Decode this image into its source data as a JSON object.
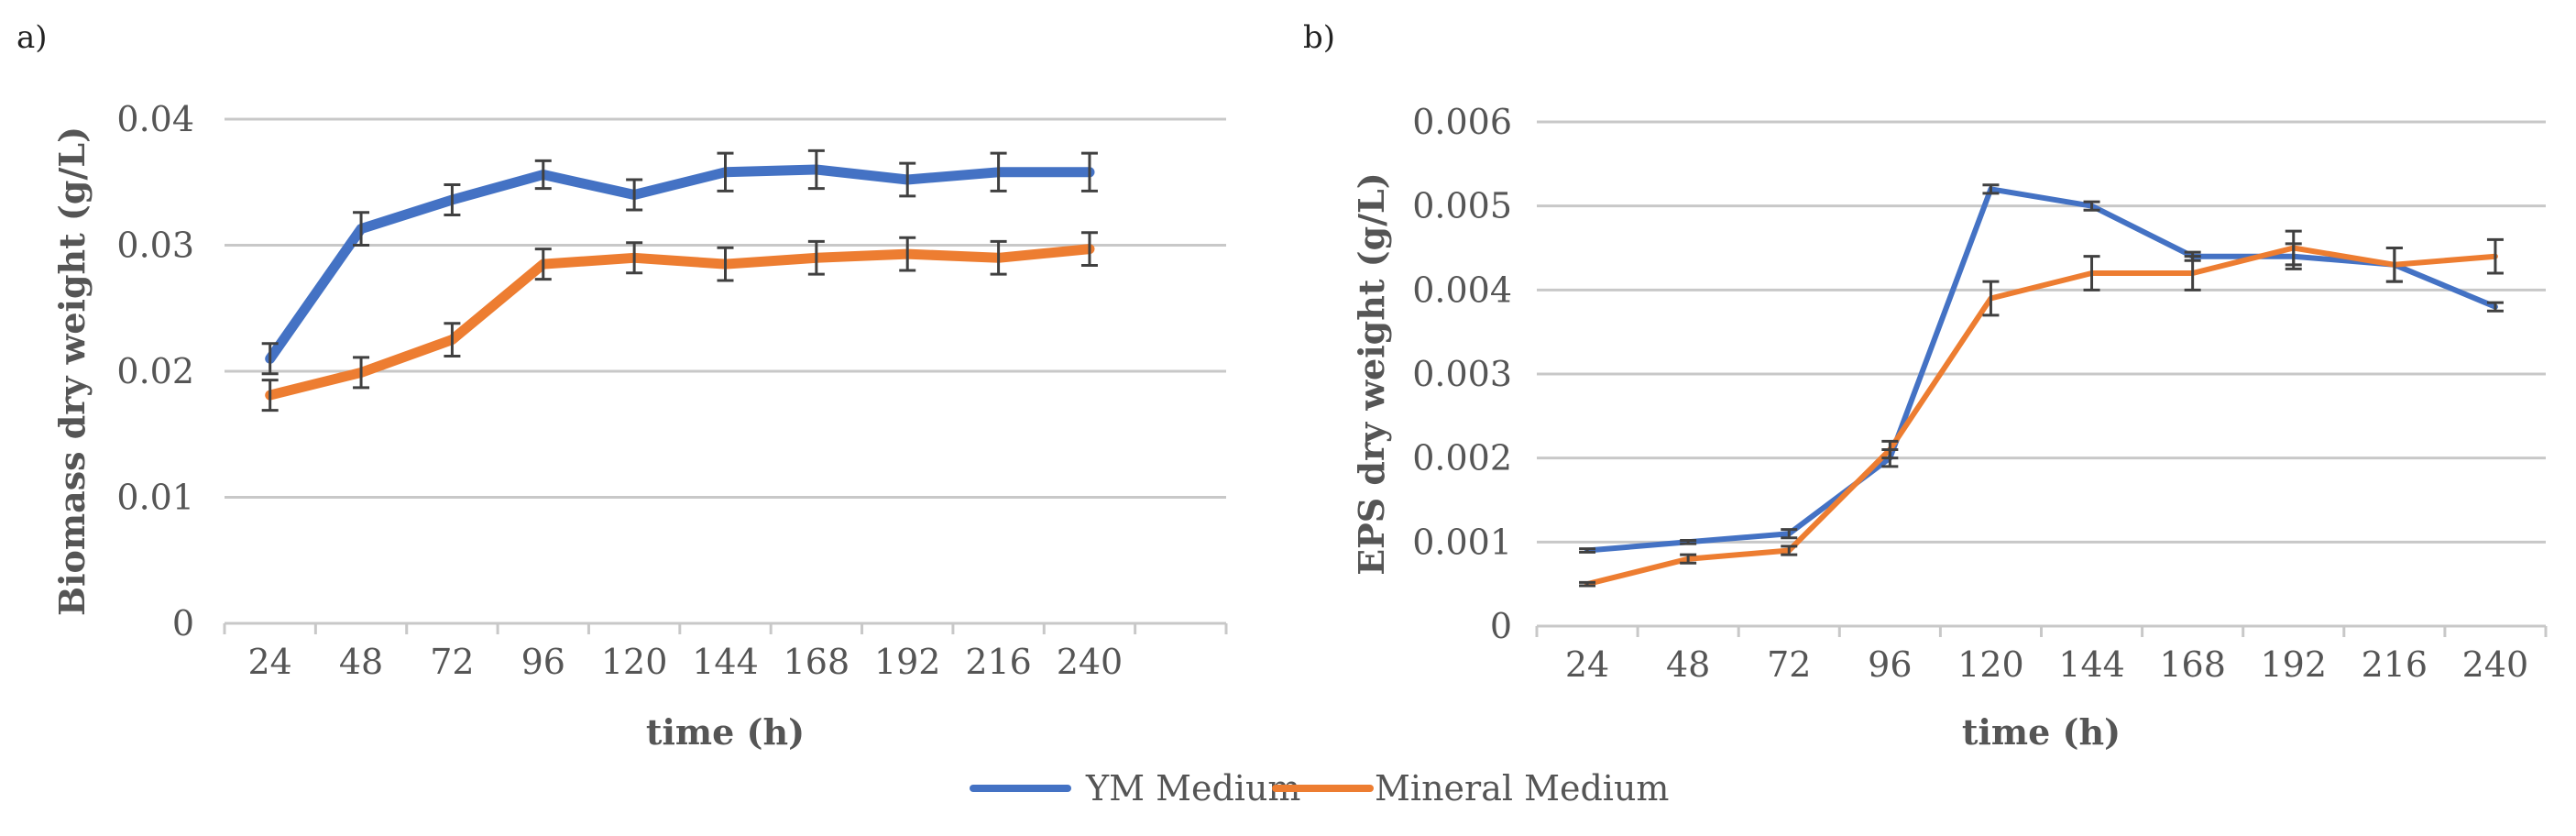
{
  "legend": [
    {
      "name": "YM Medium",
      "color": "#4472c4"
    },
    {
      "name": "Mineral Medium",
      "color": "#ed7d31"
    }
  ],
  "chart_data": [
    {
      "panel_label": "a)",
      "type": "line",
      "title": "",
      "xlabel": "time (h)",
      "ylabel": "Biomass dry weight (g/L)",
      "categories": [
        "24",
        "48",
        "72",
        "96",
        "120",
        "144",
        "168",
        "192",
        "216",
        "240"
      ],
      "extra_empty_category": true,
      "ylim": [
        0,
        0.04
      ],
      "yticks": [
        "0",
        "0.01",
        "0.02",
        "0.03",
        "0.04"
      ],
      "grid": true,
      "series": [
        {
          "name": "YM Medium",
          "color": "#4472c4",
          "values": [
            0.021,
            0.0313,
            0.0336,
            0.0356,
            0.034,
            0.0358,
            0.036,
            0.0352,
            0.0358,
            0.0358
          ],
          "errors": [
            0.0012,
            0.0013,
            0.0012,
            0.0011,
            0.0012,
            0.0015,
            0.0015,
            0.0013,
            0.0015,
            0.0015
          ]
        },
        {
          "name": "Mineral Medium",
          "color": "#ed7d31",
          "values": [
            0.0181,
            0.0199,
            0.0225,
            0.0285,
            0.029,
            0.0285,
            0.029,
            0.0293,
            0.029,
            0.0297
          ],
          "errors": [
            0.0012,
            0.0012,
            0.0013,
            0.0012,
            0.0012,
            0.0013,
            0.0013,
            0.0013,
            0.0013,
            0.0013
          ]
        }
      ]
    },
    {
      "panel_label": "b)",
      "type": "line",
      "title": "",
      "xlabel": "time (h)",
      "ylabel": "EPS dry weight (g/L)",
      "categories": [
        "24",
        "48",
        "72",
        "96",
        "120",
        "144",
        "168",
        "192",
        "216",
        "240"
      ],
      "extra_empty_category": false,
      "ylim": [
        0,
        0.006
      ],
      "yticks": [
        "0",
        "0.001",
        "0.002",
        "0.003",
        "0.004",
        "0.005",
        "0.006"
      ],
      "grid": true,
      "series": [
        {
          "name": "YM Medium",
          "color": "#4472c4",
          "values": [
            0.0009,
            0.001,
            0.0011,
            0.002,
            0.0052,
            0.005,
            0.0044,
            0.0044,
            0.0043,
            0.0038
          ],
          "errors": [
            2e-05,
            2e-05,
            5e-05,
            0.0001,
            5e-05,
            5e-05,
            5e-05,
            0.00015,
            0.0002,
            5e-05
          ]
        },
        {
          "name": "Mineral Medium",
          "color": "#ed7d31",
          "values": [
            0.0005,
            0.0008,
            0.0009,
            0.0021,
            0.0039,
            0.0042,
            0.0042,
            0.0045,
            0.0043,
            0.0044
          ],
          "errors": [
            2e-05,
            5e-05,
            5e-05,
            0.0001,
            0.0002,
            0.0002,
            0.0002,
            0.0002,
            0.0002,
            0.0002
          ]
        }
      ]
    }
  ]
}
